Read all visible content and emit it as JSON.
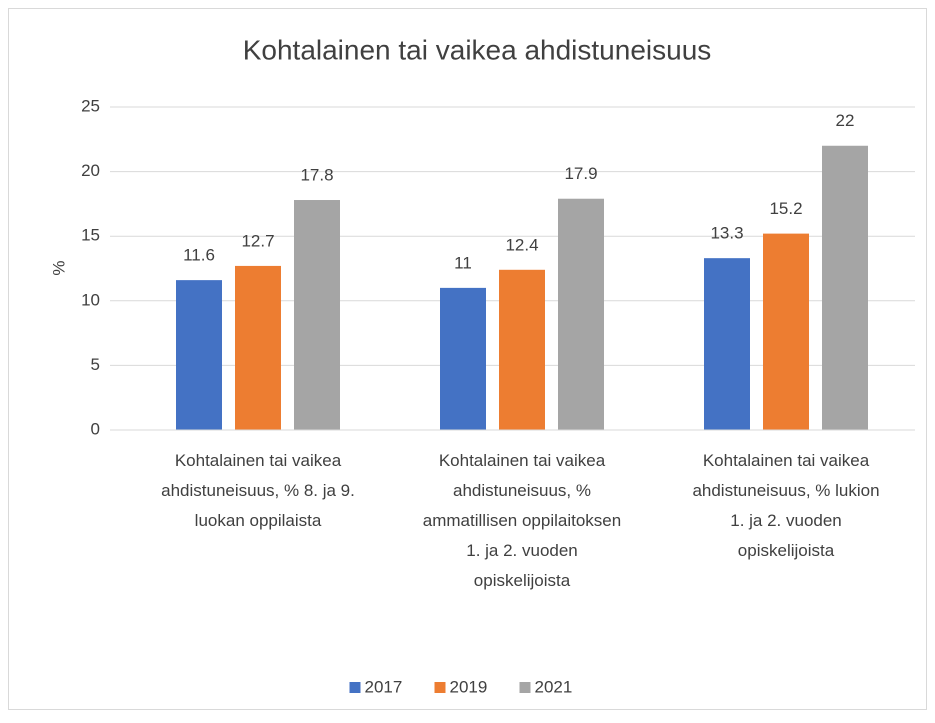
{
  "chart_data": {
    "type": "bar",
    "title": "Kohtalainen tai vaikea ahdistuneisuus",
    "y_label": "%",
    "categories": [
      "Kohtalainen tai vaikea ahdistuneisuus, % 8. ja 9. luokan oppilaista",
      "Kohtalainen tai vaikea ahdistuneisuus, % ammatillisen oppilaitoksen 1. ja 2. vuoden opiskelijoista",
      "Kohtalainen tai vaikea ahdistuneisuus, % lukion 1. ja 2. vuoden opiskelijoista"
    ],
    "series": [
      {
        "name": "2017",
        "color": "#4472c4",
        "values": [
          11.6,
          11,
          13.3
        ]
      },
      {
        "name": "2019",
        "color": "#ed7d31",
        "values": [
          12.7,
          12.4,
          15.2
        ]
      },
      {
        "name": "2021",
        "color": "#a5a5a5",
        "values": [
          17.8,
          17.9,
          22
        ]
      }
    ],
    "ylim": [
      0,
      25
    ],
    "yticks": [
      0,
      5,
      10,
      15,
      20,
      25
    ],
    "grid": true,
    "legend": "bottom"
  }
}
